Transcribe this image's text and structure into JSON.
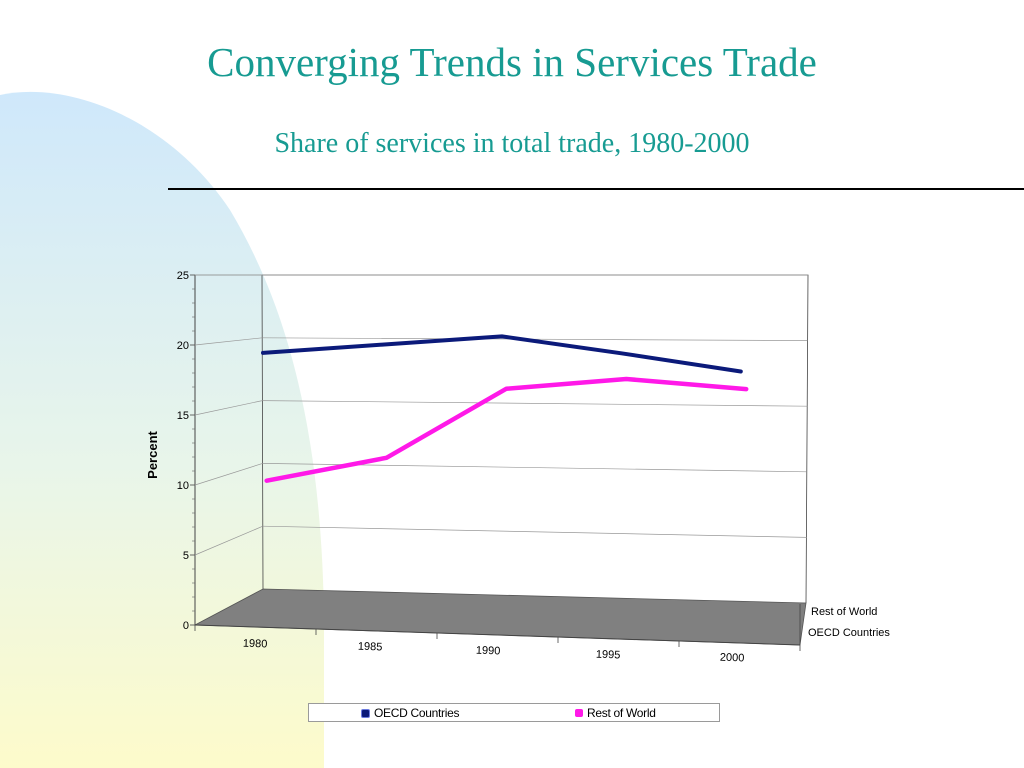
{
  "slide": {
    "title": "Converging Trends in Services Trade",
    "subtitle": "Share of services in total trade, 1980-2000"
  },
  "colors": {
    "title": "#179b92",
    "oecd": "#0b1a7a",
    "rest_of_world": "#ff19e8",
    "floor": "#808080"
  },
  "chart_data": {
    "type": "line",
    "title": "",
    "xlabel": "",
    "ylabel": "Percent",
    "categories": [
      "1980",
      "1985",
      "1990",
      "1995",
      "2000"
    ],
    "ylim": [
      0,
      25
    ],
    "yticks": [
      "0",
      "5",
      "10",
      "15",
      "20",
      "25"
    ],
    "grid": true,
    "three_d": true,
    "depth_labels": [
      "Rest of World",
      "OECD Countries"
    ],
    "legend_position": "bottom",
    "series": [
      {
        "name": "OECD Countries",
        "values": [
          18.8,
          19.7,
          20.6,
          19.5,
          18.3
        ],
        "color": "#0b1a7a"
      },
      {
        "name": "Rest of World",
        "values": [
          9.5,
          11.5,
          17.0,
          18.0,
          17.5
        ],
        "color": "#ff19e8"
      }
    ]
  }
}
